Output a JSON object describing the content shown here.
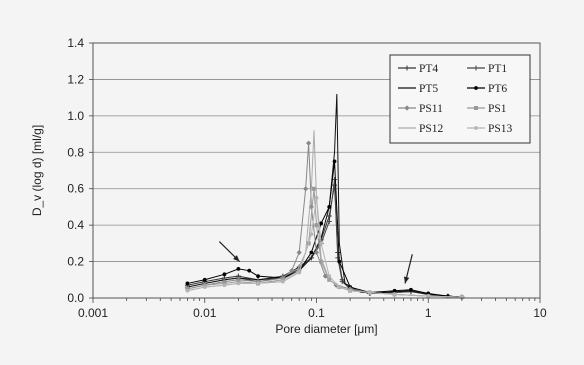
{
  "chart_data": {
    "type": "line",
    "xlabel": "Pore diameter [μm]",
    "ylabel": "D_v (log d) [ml/g]",
    "xscale": "log",
    "xlim": [
      0.001,
      10
    ],
    "ylim": [
      0,
      1.4
    ],
    "x_ticks": [
      0.001,
      0.01,
      0.1,
      1,
      10
    ],
    "x_tick_labels": [
      "0.001",
      "0.01",
      "0.1",
      "1",
      "10"
    ],
    "y_ticks": [
      0.0,
      0.2,
      0.4,
      0.6,
      0.8,
      1.0,
      1.2,
      1.4
    ],
    "y_tick_labels": [
      "0.0",
      "0.2",
      "0.4",
      "0.6",
      "0.8",
      "1.0",
      "1.2",
      "1.4"
    ],
    "grid": "horizontal",
    "legend_position": "top-right",
    "annotations": [
      "arrow",
      "arrow"
    ],
    "series": [
      {
        "name": "PT4",
        "color": "#333333",
        "marker": "plus",
        "x": [
          0.007,
          0.01,
          0.015,
          0.02,
          0.03,
          0.05,
          0.07,
          0.09,
          0.11,
          0.13,
          0.145,
          0.155,
          0.17,
          0.2,
          0.3,
          0.5,
          0.7,
          1,
          1.5,
          2
        ],
        "y": [
          0.07,
          0.09,
          0.11,
          0.12,
          0.1,
          0.12,
          0.17,
          0.22,
          0.32,
          0.45,
          0.62,
          0.25,
          0.1,
          0.05,
          0.025,
          0.03,
          0.035,
          0.02,
          0.01,
          0.005
        ]
      },
      {
        "name": "PT1",
        "color": "#444444",
        "marker": "plus",
        "x": [
          0.007,
          0.01,
          0.015,
          0.02,
          0.03,
          0.05,
          0.07,
          0.09,
          0.11,
          0.13,
          0.145,
          0.155,
          0.17,
          0.2,
          0.3,
          0.5,
          0.7,
          1,
          1.5,
          2
        ],
        "y": [
          0.06,
          0.08,
          0.1,
          0.11,
          0.09,
          0.11,
          0.16,
          0.22,
          0.3,
          0.42,
          0.65,
          0.22,
          0.09,
          0.05,
          0.025,
          0.03,
          0.035,
          0.02,
          0.01,
          0.005
        ]
      },
      {
        "name": "PT5",
        "color": "#111111",
        "marker": "none",
        "x": [
          0.007,
          0.01,
          0.015,
          0.02,
          0.03,
          0.05,
          0.07,
          0.09,
          0.11,
          0.13,
          0.145,
          0.152,
          0.16,
          0.18,
          0.25,
          0.4,
          0.7,
          1,
          1.5,
          2
        ],
        "y": [
          0.06,
          0.08,
          0.1,
          0.11,
          0.1,
          0.11,
          0.15,
          0.22,
          0.33,
          0.5,
          0.8,
          1.12,
          0.3,
          0.08,
          0.03,
          0.03,
          0.04,
          0.02,
          0.01,
          0.005
        ]
      },
      {
        "name": "PT6",
        "color": "#000000",
        "marker": "circle",
        "x": [
          0.007,
          0.01,
          0.015,
          0.02,
          0.025,
          0.03,
          0.05,
          0.07,
          0.09,
          0.11,
          0.13,
          0.145,
          0.16,
          0.2,
          0.3,
          0.5,
          0.7,
          1,
          1.5,
          2
        ],
        "y": [
          0.08,
          0.1,
          0.13,
          0.16,
          0.15,
          0.12,
          0.11,
          0.15,
          0.25,
          0.41,
          0.5,
          0.75,
          0.2,
          0.06,
          0.03,
          0.04,
          0.045,
          0.025,
          0.01,
          0.005
        ]
      },
      {
        "name": "PS11",
        "color": "#888888",
        "marker": "diamond",
        "x": [
          0.007,
          0.01,
          0.015,
          0.02,
          0.03,
          0.05,
          0.06,
          0.07,
          0.08,
          0.085,
          0.09,
          0.1,
          0.12,
          0.15,
          0.2,
          0.3,
          0.5,
          1,
          2
        ],
        "y": [
          0.05,
          0.07,
          0.09,
          0.1,
          0.09,
          0.11,
          0.15,
          0.25,
          0.6,
          0.85,
          0.5,
          0.25,
          0.12,
          0.07,
          0.05,
          0.03,
          0.02,
          0.01,
          0.005
        ]
      },
      {
        "name": "PS1",
        "color": "#999999",
        "marker": "square",
        "x": [
          0.007,
          0.01,
          0.015,
          0.02,
          0.03,
          0.05,
          0.07,
          0.085,
          0.095,
          0.1,
          0.11,
          0.13,
          0.16,
          0.2,
          0.3,
          0.5,
          1,
          2
        ],
        "y": [
          0.05,
          0.07,
          0.08,
          0.09,
          0.08,
          0.1,
          0.15,
          0.3,
          0.6,
          0.4,
          0.2,
          0.1,
          0.06,
          0.04,
          0.03,
          0.02,
          0.01,
          0.005
        ]
      },
      {
        "name": "PS12",
        "color": "#aaaaaa",
        "marker": "none",
        "x": [
          0.007,
          0.01,
          0.015,
          0.02,
          0.03,
          0.05,
          0.065,
          0.08,
          0.09,
          0.095,
          0.1,
          0.11,
          0.13,
          0.16,
          0.2,
          0.3,
          0.5,
          1,
          2
        ],
        "y": [
          0.04,
          0.06,
          0.07,
          0.08,
          0.08,
          0.09,
          0.13,
          0.25,
          0.6,
          0.92,
          0.55,
          0.22,
          0.1,
          0.06,
          0.04,
          0.03,
          0.02,
          0.01,
          0.005
        ]
      },
      {
        "name": "PS13",
        "color": "#b4b4b4",
        "marker": "circle",
        "x": [
          0.007,
          0.01,
          0.015,
          0.02,
          0.03,
          0.05,
          0.07,
          0.09,
          0.1,
          0.11,
          0.13,
          0.16,
          0.2,
          0.3,
          0.5,
          1,
          2
        ],
        "y": [
          0.04,
          0.06,
          0.07,
          0.08,
          0.08,
          0.09,
          0.14,
          0.35,
          0.55,
          0.3,
          0.12,
          0.06,
          0.04,
          0.03,
          0.02,
          0.01,
          0.005
        ]
      }
    ]
  }
}
